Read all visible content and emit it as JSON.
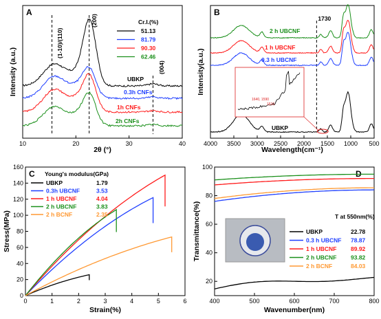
{
  "chart_data": [
    {
      "panel": "A",
      "type": "line",
      "xlabel": "2θ (°)",
      "ylabel": "Intensity (a.u.)",
      "xlim": [
        10,
        40
      ],
      "xticks": [
        10,
        20,
        30,
        40
      ],
      "legend_title": "Cr.I.(%)",
      "legend": [
        {
          "value": "51.13",
          "color": "#000000"
        },
        {
          "value": "81.79",
          "color": "#1f3fff"
        },
        {
          "value": "90.30",
          "color": "#ff1a1a"
        },
        {
          "value": "62.46",
          "color": "#1a8f1a"
        }
      ],
      "peak_labels": [
        "(1-10)/(110)",
        "(200)",
        "(004)"
      ],
      "peak_positions": [
        15.5,
        22.5,
        34.5
      ],
      "series": [
        {
          "name": "UBKP",
          "color": "#000000"
        },
        {
          "name": "0.3h CNFs",
          "color": "#1f3fff"
        },
        {
          "name": "1h CNFs",
          "color": "#ff1a1a"
        },
        {
          "name": "2h CNFs",
          "color": "#1a8f1a"
        }
      ]
    },
    {
      "panel": "B",
      "type": "line",
      "xlabel": "Wavelength(cm⁻¹)",
      "ylabel": "Intensity(a.u.)",
      "xlim": [
        4000,
        500
      ],
      "xticks": [
        4000,
        3500,
        3000,
        2500,
        2000,
        1500,
        1000,
        500
      ],
      "annotation": "1730",
      "series": [
        {
          "name": "2 h UBCNF",
          "color": "#1a8f1a"
        },
        {
          "name": "1 h UBCNF",
          "color": "#ff1a1a"
        },
        {
          "name": "0.3 h UBCNF",
          "color": "#1f3fff"
        },
        {
          "name": "UBKP",
          "color": "#000000"
        }
      ],
      "inset_labels": [
        "1640, 1590",
        "1510"
      ]
    },
    {
      "panel": "C",
      "type": "line",
      "xlabel": "Strain(%)",
      "ylabel": "Stress(MPa)",
      "xlim": [
        0,
        6
      ],
      "ylim": [
        0,
        160
      ],
      "xticks": [
        0,
        1,
        2,
        3,
        4,
        5,
        6
      ],
      "yticks": [
        0,
        20,
        40,
        60,
        80,
        100,
        120,
        140,
        160
      ],
      "legend_title": "Young's modulus(GPa)",
      "series": [
        {
          "name": "UBKP",
          "modulus": "1.79",
          "color": "#000000",
          "end_strain": 2.4,
          "end_stress": 26
        },
        {
          "name": "0.3h UBCNF",
          "modulus": "3.53",
          "color": "#1f3fff",
          "end_strain": 4.8,
          "end_stress": 122
        },
        {
          "name": "1 h UBCNF",
          "modulus": "4.04",
          "color": "#ff1a1a",
          "end_strain": 5.25,
          "end_stress": 150
        },
        {
          "name": "2 h UBCNF",
          "modulus": "3.83",
          "color": "#1a8f1a",
          "end_strain": 3.42,
          "end_stress": 107
        },
        {
          "name": "2 h BCNF",
          "modulus": "2.35",
          "color": "#ff9933",
          "end_strain": 5.5,
          "end_stress": 73
        }
      ]
    },
    {
      "panel": "D",
      "type": "line",
      "xlabel": "Wavenumber(nm)",
      "ylabel": "Transmittance(%)",
      "xlim": [
        400,
        800
      ],
      "ylim": [
        10,
        100
      ],
      "xticks": [
        400,
        500,
        600,
        700,
        800
      ],
      "yticks": [
        20,
        40,
        60,
        80,
        100
      ],
      "legend_title": "T at 550nm(%)",
      "series": [
        {
          "name": "UBKP",
          "value": "22.78",
          "color": "#000000",
          "y400": 15.5,
          "y800": 23
        },
        {
          "name": "0.3 h UBCNF",
          "value": "78.87",
          "color": "#1f3fff",
          "y400": 76,
          "y800": 84
        },
        {
          "name": "1 h UBCNF",
          "value": "89.92",
          "color": "#ff1a1a",
          "y400": 87.5,
          "y800": 92
        },
        {
          "name": "2 h UBCNF",
          "value": "93.82",
          "color": "#1a8f1a",
          "y400": 91,
          "y800": 95
        },
        {
          "name": "2 h BCNF",
          "value": "84.03",
          "color": "#ff9933",
          "y400": 78,
          "y800": 85.5
        }
      ]
    }
  ]
}
